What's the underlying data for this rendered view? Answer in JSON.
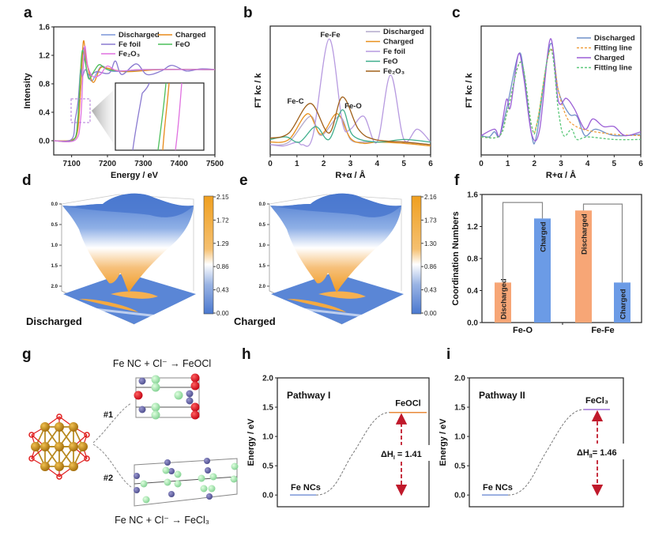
{
  "panels": {
    "a": "a",
    "b": "b",
    "c": "c",
    "d": "d",
    "e": "e",
    "f": "f",
    "g": "g",
    "h": "h",
    "i": "i"
  },
  "colors": {
    "orange_bar": "#f7a676",
    "blue_bar": "#6b9be6",
    "bar_text": "#b01a2a",
    "arrow": "#c0192b",
    "colormap_high": "#f0a020",
    "colormap_mid": "#ffffff",
    "colormap_low": "#4a78cf"
  },
  "chart_data": [
    {
      "id": "a",
      "type": "line",
      "xlabel": "Energy / eV",
      "ylabel": "Intensity",
      "xlim": [
        7050,
        7500
      ],
      "ylim": [
        -0.2,
        1.6
      ],
      "xticks": [
        "7100",
        "7200",
        "7300",
        "7400",
        "7500"
      ],
      "yticks": [
        "0.0",
        "0.4",
        "0.8",
        "1.2",
        "1.6"
      ],
      "legend": "top-right",
      "inset": "zoomed edge region",
      "series": [
        {
          "name": "Discharged",
          "color": "#7b96d8",
          "points": [
            [
              7050,
              0
            ],
            [
              7100,
              0.01
            ],
            [
              7115,
              0.15
            ],
            [
              7125,
              0.7
            ],
            [
              7133,
              1.3
            ],
            [
              7142,
              1.0
            ],
            [
              7155,
              0.84
            ],
            [
              7170,
              0.95
            ],
            [
              7185,
              1.05
            ],
            [
              7210,
              0.98
            ],
            [
              7260,
              0.98
            ],
            [
              7350,
              1.0
            ],
            [
              7500,
              1.0
            ]
          ]
        },
        {
          "name": "Charged",
          "color": "#e88a1a",
          "points": [
            [
              7050,
              0
            ],
            [
              7100,
              0.01
            ],
            [
              7117,
              0.15
            ],
            [
              7126,
              0.8
            ],
            [
              7133,
              1.4
            ],
            [
              7142,
              1.1
            ],
            [
              7160,
              0.82
            ],
            [
              7180,
              1.02
            ],
            [
              7200,
              1.02
            ],
            [
              7250,
              0.97
            ],
            [
              7350,
              1.0
            ],
            [
              7500,
              1.0
            ]
          ]
        },
        {
          "name": "Fe foil",
          "color": "#8a7ad0",
          "points": [
            [
              7050,
              0
            ],
            [
              7100,
              0.02
            ],
            [
              7110,
              0.3
            ],
            [
              7118,
              0.55
            ],
            [
              7125,
              1.0
            ],
            [
              7130,
              0.9
            ],
            [
              7138,
              1.0
            ],
            [
              7150,
              0.92
            ],
            [
              7170,
              0.97
            ],
            [
              7205,
              0.95
            ],
            [
              7222,
              1.12
            ],
            [
              7240,
              0.93
            ],
            [
              7280,
              1.08
            ],
            [
              7310,
              0.93
            ],
            [
              7350,
              0.98
            ],
            [
              7380,
              1.06
            ],
            [
              7420,
              0.98
            ],
            [
              7460,
              1.01
            ],
            [
              7500,
              1.0
            ]
          ]
        },
        {
          "name": "FeO",
          "color": "#4cbf5a",
          "points": [
            [
              7050,
              0
            ],
            [
              7105,
              0.01
            ],
            [
              7117,
              0.3
            ],
            [
              7125,
              1.0
            ],
            [
              7130,
              1.27
            ],
            [
              7138,
              1.1
            ],
            [
              7148,
              0.87
            ],
            [
              7163,
              0.98
            ],
            [
              7178,
              1.07
            ],
            [
              7200,
              1.0
            ],
            [
              7250,
              0.98
            ],
            [
              7300,
              1.0
            ],
            [
              7500,
              1.0
            ]
          ]
        },
        {
          "name": "Fe₂O₃",
          "color": "#e070e0",
          "points": [
            [
              7050,
              0
            ],
            [
              7110,
              0.01
            ],
            [
              7125,
              0.3
            ],
            [
              7132,
              1.0
            ],
            [
              7137,
              1.33
            ],
            [
              7145,
              1.05
            ],
            [
              7160,
              0.9
            ],
            [
              7180,
              0.93
            ],
            [
              7200,
              1.05
            ],
            [
              7230,
              0.98
            ],
            [
              7300,
              1.0
            ],
            [
              7500,
              1.0
            ]
          ]
        }
      ]
    },
    {
      "id": "b",
      "type": "line",
      "xlabel": "R+α / Å",
      "ylabel": "FT kc / k",
      "xlim": [
        0,
        6
      ],
      "ylim": [
        0,
        1
      ],
      "xticks": [
        "0",
        "1",
        "2",
        "3",
        "4",
        "5",
        "6"
      ],
      "yticks": [],
      "legend": "top-right",
      "annotations": [
        {
          "text": "Fe-Fe",
          "color": "#c88fe0"
        },
        {
          "text": "Fe-C",
          "color": "#c07020"
        },
        {
          "text": "Fe-O",
          "color": "#3fae4c"
        }
      ],
      "series": [
        {
          "name": "Discharged",
          "color": "#b4aacb",
          "points": [
            [
              0,
              0.08
            ],
            [
              0.7,
              0.1
            ],
            [
              1.5,
              0.3
            ],
            [
              1.9,
              0.15
            ],
            [
              2.6,
              0.3
            ],
            [
              3,
              0.12
            ],
            [
              3.5,
              0.1
            ],
            [
              4,
              0.1
            ],
            [
              5,
              0.1
            ],
            [
              6,
              0.08
            ]
          ]
        },
        {
          "name": "Charged",
          "color": "#e8901c",
          "points": [
            [
              0,
              0.1
            ],
            [
              0.7,
              0.12
            ],
            [
              1.4,
              0.32
            ],
            [
              1.9,
              0.16
            ],
            [
              2.5,
              0.32
            ],
            [
              3,
              0.13
            ],
            [
              3.5,
              0.09
            ],
            [
              4,
              0.1
            ],
            [
              5,
              0.09
            ],
            [
              6,
              0.07
            ]
          ]
        },
        {
          "name": "Fe foil",
          "color": "#b79ae0",
          "points": [
            [
              0,
              0.08
            ],
            [
              0.5,
              0.07
            ],
            [
              1,
              0.1
            ],
            [
              1.2,
              0.08
            ],
            [
              1.6,
              0.15
            ],
            [
              2.2,
              0.9
            ],
            [
              2.7,
              0.25
            ],
            [
              3.0,
              0.2
            ],
            [
              3.5,
              0.3
            ],
            [
              4.0,
              0.1
            ],
            [
              4.5,
              0.62
            ],
            [
              5.0,
              0.12
            ],
            [
              5.5,
              0.2
            ],
            [
              6,
              0.1
            ]
          ]
        },
        {
          "name": "FeO",
          "color": "#3fae8c",
          "points": [
            [
              0,
              0.12
            ],
            [
              0.6,
              0.14
            ],
            [
              1.1,
              0.1
            ],
            [
              1.7,
              0.22
            ],
            [
              2.2,
              0.12
            ],
            [
              2.7,
              0.35
            ],
            [
              3.1,
              0.15
            ],
            [
              4,
              0.1
            ],
            [
              5,
              0.12
            ],
            [
              6,
              0.1
            ]
          ]
        },
        {
          "name": "Fe₂O₃",
          "color": "#a0601a",
          "points": [
            [
              0,
              0.13
            ],
            [
              0.7,
              0.17
            ],
            [
              1.5,
              0.4
            ],
            [
              2.2,
              0.17
            ],
            [
              2.7,
              0.45
            ],
            [
              3.3,
              0.2
            ],
            [
              3.9,
              0.12
            ],
            [
              5,
              0.1
            ],
            [
              6,
              0.08
            ]
          ]
        }
      ]
    },
    {
      "id": "c",
      "type": "line",
      "xlabel": "R+α / Å",
      "ylabel": "FT kc / k",
      "xlim": [
        0,
        6
      ],
      "ylim": [
        0,
        1
      ],
      "xticks": [
        "0",
        "1",
        "2",
        "3",
        "4",
        "5",
        "6"
      ],
      "yticks": [],
      "legend": "top-right",
      "series": [
        {
          "name": "Discharged",
          "color": "#6f90c8",
          "dashed": false,
          "points": [
            [
              0,
              0.15
            ],
            [
              0.3,
              0.14
            ],
            [
              0.5,
              0.18
            ],
            [
              0.7,
              0.15
            ],
            [
              1,
              0.4
            ],
            [
              1.4,
              0.78
            ],
            [
              1.6,
              0.65
            ],
            [
              1.9,
              0.15
            ],
            [
              2.1,
              0.17
            ],
            [
              2.6,
              0.86
            ],
            [
              2.9,
              0.5
            ],
            [
              3.3,
              0.32
            ],
            [
              3.6,
              0.3
            ],
            [
              3.9,
              0.15
            ],
            [
              4.3,
              0.2
            ],
            [
              5,
              0.15
            ],
            [
              6,
              0.16
            ]
          ]
        },
        {
          "name": "Fitting line",
          "color": "#f0a040",
          "dashed": true,
          "points": [
            [
              0,
              0.14
            ],
            [
              0.7,
              0.15
            ],
            [
              1,
              0.35
            ],
            [
              1.5,
              0.72
            ],
            [
              1.9,
              0.22
            ],
            [
              2.1,
              0.25
            ],
            [
              2.6,
              0.82
            ],
            [
              2.9,
              0.5
            ],
            [
              3.2,
              0.3
            ],
            [
              3.5,
              0.23
            ],
            [
              4,
              0.19
            ],
            [
              5,
              0.16
            ],
            [
              6,
              0.15
            ]
          ]
        },
        {
          "name": "Charged",
          "color": "#9b5fd6",
          "dashed": false,
          "points": [
            [
              0,
              0.15
            ],
            [
              0.5,
              0.2
            ],
            [
              0.7,
              0.15
            ],
            [
              0.95,
              0.43
            ],
            [
              1.1,
              0.37
            ],
            [
              1.4,
              0.78
            ],
            [
              1.6,
              0.6
            ],
            [
              1.9,
              0.16
            ],
            [
              2.2,
              0.2
            ],
            [
              2.6,
              0.9
            ],
            [
              2.9,
              0.42
            ],
            [
              3.2,
              0.44
            ],
            [
              3.5,
              0.36
            ],
            [
              3.9,
              0.2
            ],
            [
              4.2,
              0.28
            ],
            [
              4.6,
              0.22
            ],
            [
              5,
              0.22
            ],
            [
              5.4,
              0.15
            ],
            [
              6,
              0.18
            ]
          ]
        },
        {
          "name": "Fitting line",
          "color": "#5cc87a",
          "dashed": true,
          "points": [
            [
              0,
              0.14
            ],
            [
              0.7,
              0.15
            ],
            [
              1,
              0.35
            ],
            [
              1.5,
              0.72
            ],
            [
              1.9,
              0.22
            ],
            [
              2.1,
              0.24
            ],
            [
              2.6,
              0.82
            ],
            [
              2.9,
              0.35
            ],
            [
              3.1,
              0.15
            ],
            [
              3.4,
              0.2
            ],
            [
              3.6,
              0.12
            ],
            [
              4,
              0.14
            ],
            [
              5,
              0.12
            ],
            [
              6,
              0.12
            ]
          ]
        }
      ]
    },
    {
      "id": "d",
      "type": "heatmap",
      "label": "Discharged",
      "zticks": [
        "0.0",
        "0.5",
        "1.0",
        "1.5",
        "2.0"
      ],
      "colorbar": [
        "2.15",
        "1.72",
        "1.29",
        "0.86",
        "0.43",
        "0.00"
      ],
      "colorbar_range": [
        0,
        2.15
      ]
    },
    {
      "id": "e",
      "type": "heatmap",
      "label": "Charged",
      "zticks": [
        "0.0",
        "0.5",
        "1.0",
        "1.5",
        "2.0"
      ],
      "colorbar": [
        "2.16",
        "1.73",
        "1.30",
        "0.86",
        "0.43",
        "0.00"
      ],
      "colorbar_range": [
        0,
        2.16
      ]
    },
    {
      "id": "f",
      "type": "bar",
      "ylabel": "Coordination Numbers",
      "ylim": [
        0,
        1.6
      ],
      "yticks": [
        "0.0",
        "0.4",
        "0.8",
        "1.2",
        "1.6"
      ],
      "categories": [
        "Fe-O",
        "Fe-Fe"
      ],
      "series": [
        {
          "name": "Discharged",
          "values": [
            0.5,
            1.4
          ]
        },
        {
          "name": "Charged",
          "values": [
            1.3,
            0.5
          ]
        }
      ]
    },
    {
      "id": "h",
      "type": "line",
      "ylabel": "Energy / eV",
      "title": "Pathway I",
      "ylim": [
        -0.2,
        2.0
      ],
      "yticks": [
        "0.0",
        "0.5",
        "1.0",
        "1.5",
        "2.0"
      ],
      "start": {
        "label": "Fe NCs",
        "value": 0.0,
        "color": "#7b96d8"
      },
      "end": {
        "label": "FeOCl",
        "value": 1.41,
        "color": "#e88a3a"
      },
      "delta": {
        "symbol": "ΔH",
        "sub": "I",
        "text": " = 1.41"
      }
    },
    {
      "id": "i",
      "type": "line",
      "ylabel": "Energy / eV",
      "title": "Pathway II",
      "ylim": [
        -0.2,
        2.0
      ],
      "yticks": [
        "0.0",
        "0.5",
        "1.0",
        "1.5",
        "2.0"
      ],
      "start": {
        "label": "Fe NCs",
        "value": 0.0,
        "color": "#7b96d8"
      },
      "end": {
        "label": "FeCl₃",
        "value": 1.46,
        "color": "#a070d8"
      },
      "delta": {
        "symbol": "ΔH",
        "sub": "II",
        "text": "= 1.46"
      }
    }
  ],
  "g": {
    "reaction1": "Fe NC + Cl⁻ → FeOCl",
    "reaction2": "Fe NC + Cl⁻ → FeCl₃",
    "path1": "#1",
    "path2": "#2"
  }
}
